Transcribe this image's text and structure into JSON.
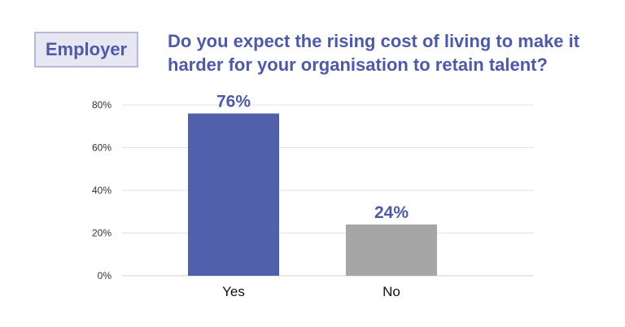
{
  "badge": {
    "label": "Employer"
  },
  "colors": {
    "accent": "#4f5aa6",
    "bar_yes": "#5060ad",
    "bar_no": "#a6a6a6",
    "grid": "#e3e3e3"
  },
  "chart_data": {
    "type": "bar",
    "title": "Do you expect the rising cost of living to make it harder for your organisation to retain talent?",
    "categories": [
      "Yes",
      "No"
    ],
    "values": [
      76,
      24
    ],
    "data_labels": [
      "76%",
      "24%"
    ],
    "yticks": [
      "0%",
      "20%",
      "40%",
      "60%",
      "80%"
    ],
    "ylim": [
      0,
      80
    ],
    "xlabel": "",
    "ylabel": "",
    "grid": true,
    "legend": "none"
  }
}
